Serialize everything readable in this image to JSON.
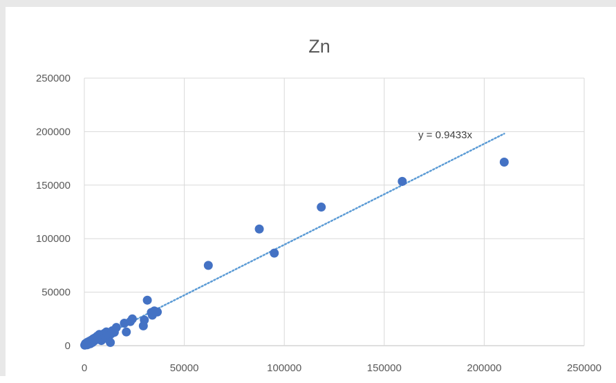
{
  "chart_data": {
    "type": "scatter",
    "title": "Zn",
    "xlabel": "",
    "ylabel": "",
    "xlim": [
      0,
      250000
    ],
    "ylim": [
      0,
      250000
    ],
    "x_ticks": [
      0,
      50000,
      100000,
      150000,
      200000,
      250000
    ],
    "y_ticks": [
      0,
      50000,
      100000,
      150000,
      200000,
      250000
    ],
    "x_tick_labels": [
      "0",
      "50000",
      "100000",
      "150000",
      "200000",
      "250000"
    ],
    "y_tick_labels": [
      "0",
      "50000",
      "100000",
      "150000",
      "200000",
      "250000"
    ],
    "grid": true,
    "legend": "none",
    "marker_color": "#4472c4",
    "trendline": {
      "type": "linear-through-origin",
      "slope": 0.9433,
      "x_range": [
        0,
        210000
      ],
      "style": "dotted",
      "color": "#5b9bd5",
      "label": "y = 0.9433x"
    },
    "series": [
      {
        "points": [
          [
            200,
            500
          ],
          [
            400,
            1200
          ],
          [
            600,
            2000
          ],
          [
            900,
            1500
          ],
          [
            1200,
            2800
          ],
          [
            1500,
            800
          ],
          [
            1800,
            3500
          ],
          [
            2200,
            2200
          ],
          [
            2600,
            4200
          ],
          [
            3000,
            1800
          ],
          [
            3500,
            5200
          ],
          [
            4000,
            3000
          ],
          [
            4500,
            6500
          ],
          [
            5000,
            4500
          ],
          [
            5500,
            7500
          ],
          [
            6000,
            5800
          ],
          [
            6500,
            9000
          ],
          [
            7000,
            6200
          ],
          [
            7500,
            10500
          ],
          [
            8000,
            8200
          ],
          [
            8500,
            4800
          ],
          [
            9000,
            9800
          ],
          [
            9500,
            7200
          ],
          [
            10000,
            11500
          ],
          [
            10500,
            8800
          ],
          [
            11000,
            12800
          ],
          [
            11500,
            10200
          ],
          [
            12000,
            6000
          ],
          [
            12500,
            9500
          ],
          [
            13000,
            3000
          ],
          [
            13500,
            11200
          ],
          [
            14000,
            14000
          ],
          [
            15000,
            12500
          ],
          [
            16000,
            17000
          ],
          [
            20000,
            21000
          ],
          [
            21000,
            12800
          ],
          [
            23000,
            22500
          ],
          [
            24000,
            25000
          ],
          [
            29500,
            18500
          ],
          [
            30000,
            24000
          ],
          [
            31500,
            42500
          ],
          [
            33500,
            31000
          ],
          [
            34000,
            28500
          ],
          [
            35000,
            32500
          ],
          [
            36500,
            31500
          ],
          [
            62000,
            75000
          ],
          [
            87500,
            109000
          ],
          [
            95000,
            86500
          ],
          [
            118500,
            129500
          ],
          [
            159000,
            153500
          ],
          [
            210000,
            171500
          ]
        ]
      }
    ]
  }
}
